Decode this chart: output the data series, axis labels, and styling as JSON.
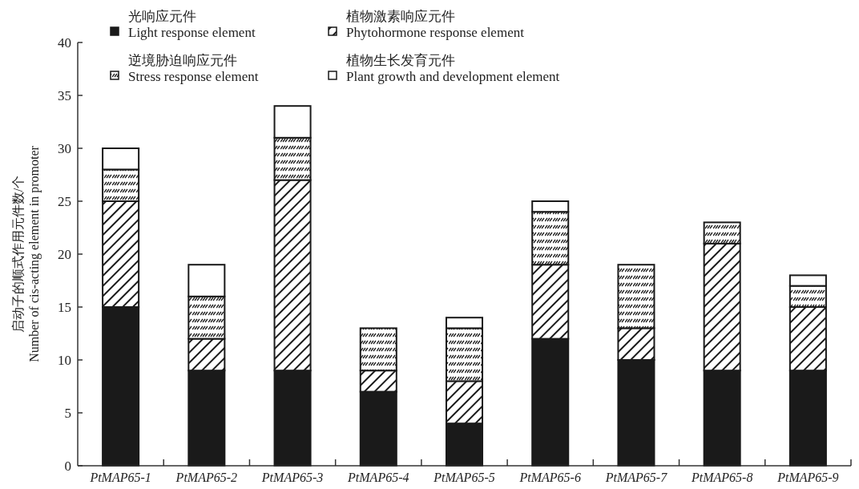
{
  "chart_data": {
    "type": "bar",
    "stacked": true,
    "ylabel": "启动子的顺式作用元件数/个\nNumber of cis-acting element in promoter",
    "categories": [
      "PtMAP65-1",
      "PtMAP65-2",
      "PtMAP65-3",
      "PtMAP65-4",
      "PtMAP65-5",
      "PtMAP65-6",
      "PtMAP65-7",
      "PtMAP65-8",
      "PtMAP65-9"
    ],
    "series": [
      {
        "name": "光响应元件\nLight response element",
        "color": "#1a1a1a",
        "values": [
          15,
          9,
          9,
          7,
          4,
          12,
          10,
          9,
          9
        ]
      },
      {
        "name": "植物激素响应元件\nPhytohormone response element",
        "color": "#1a1a1a",
        "values": [
          10,
          3,
          18,
          2,
          4,
          7,
          3,
          12,
          6
        ]
      },
      {
        "name": "逆境胁迫响应元件\nStress response element",
        "color": "#1a1a1a",
        "values": [
          3,
          4,
          4,
          4,
          5,
          5,
          6,
          2,
          2
        ]
      },
      {
        "name": "植物生长发育元件\nPlant growth and development element",
        "color": "#ffffff",
        "values": [
          2,
          3,
          3,
          0,
          1,
          1,
          0,
          0,
          1
        ]
      }
    ],
    "ylim": [
      0,
      40
    ],
    "yticks": [
      0,
      5,
      10,
      15,
      20,
      25,
      30,
      35,
      40
    ],
    "legend": "top left",
    "grid": false
  }
}
